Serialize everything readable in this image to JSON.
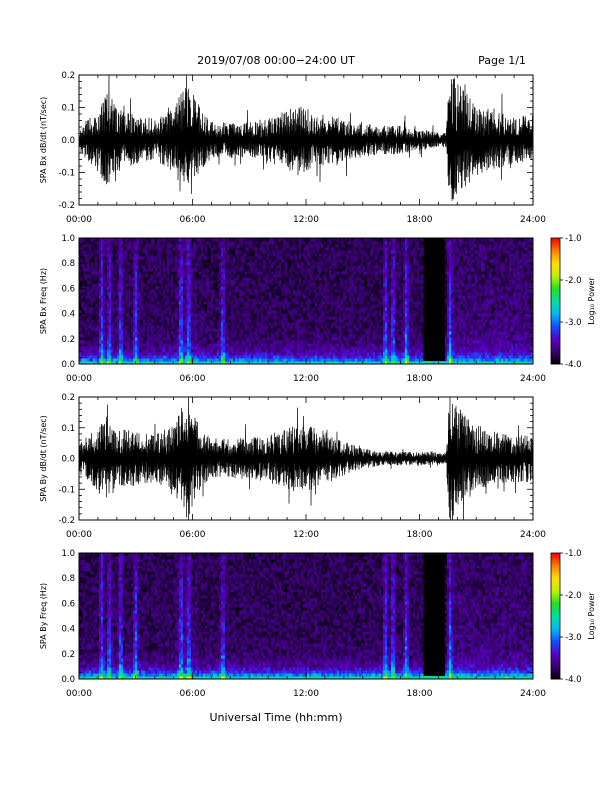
{
  "header": {
    "title": "2019/07/08  00:00−24:00 UT",
    "page": "Page 1/1"
  },
  "footer": {
    "xlabel": "Universal Time (hh:mm)"
  },
  "colors": {
    "trace": "#000000",
    "background": "#ffffff",
    "colormap": [
      "#000000",
      "#3a0070",
      "#5a00c8",
      "#1050ff",
      "#00b8ff",
      "#00e0a0",
      "#20e020",
      "#c0f000",
      "#ffe000",
      "#ff8000",
      "#ff0000"
    ]
  },
  "chart_data": [
    {
      "type": "line",
      "ylabel": "SPA Bx dB/dt (nT/sec)",
      "xlim": [
        "00:00",
        "24:00"
      ],
      "ylim": [
        -0.2,
        0.2
      ],
      "x_ticks": [
        "00:00",
        "06:00",
        "12:00",
        "18:00",
        "24:00"
      ],
      "y_ticks": [
        "-0.2",
        "-0.1",
        "0.0",
        "0.1",
        "0.2"
      ],
      "grid": false,
      "envelope": {
        "x_hours": [
          0,
          1,
          1.5,
          2,
          3,
          4,
          5,
          5.5,
          5.8,
          6,
          6.5,
          7,
          8,
          9,
          10,
          11,
          11.5,
          12,
          13,
          14,
          15,
          16,
          17,
          18,
          19,
          19.4,
          19.6,
          20,
          21,
          22,
          23,
          24
        ],
        "amplitude": [
          0.03,
          0.09,
          0.14,
          0.09,
          0.07,
          0.06,
          0.09,
          0.16,
          0.2,
          0.14,
          0.08,
          0.05,
          0.05,
          0.05,
          0.06,
          0.08,
          0.1,
          0.09,
          0.07,
          0.06,
          0.05,
          0.04,
          0.04,
          0.03,
          0.02,
          0.02,
          0.2,
          0.16,
          0.1,
          0.08,
          0.07,
          0.07
        ]
      }
    },
    {
      "type": "heatmap",
      "ylabel": "SPA Bx Freq (Hz)",
      "xlim": [
        "00:00",
        "24:00"
      ],
      "ylim": [
        0.0,
        1.0
      ],
      "x_ticks": [
        "00:00",
        "06:00",
        "12:00",
        "18:00",
        "24:00"
      ],
      "y_ticks": [
        "0.0",
        "0.2",
        "0.4",
        "0.6",
        "0.8",
        "1.0"
      ],
      "colorbar": {
        "label": "Log₁₀ Power",
        "range": [
          -4.0,
          -1.0
        ],
        "ticks": [
          "-1.0",
          "-2.0",
          "-3.0",
          "-4.0"
        ]
      },
      "bright_columns_hours": [
        1.2,
        1.6,
        2.2,
        3.0,
        5.4,
        5.8,
        7.6,
        16.2,
        16.6,
        17.3,
        19.6
      ],
      "dark_gap_hours": [
        18.2,
        19.4
      ],
      "low_freq_power_scale": 0.9
    },
    {
      "type": "line",
      "ylabel": "SPA By dB/dt (nT/sec)",
      "xlim": [
        "00:00",
        "24:00"
      ],
      "ylim": [
        -0.2,
        0.2
      ],
      "x_ticks": [
        "00:00",
        "06:00",
        "12:00",
        "18:00",
        "24:00"
      ],
      "y_ticks": [
        "-0.2",
        "-0.1",
        "0.0",
        "0.1",
        "0.2"
      ],
      "grid": false,
      "envelope": {
        "x_hours": [
          0,
          1,
          1.5,
          2,
          3,
          4,
          5,
          5.5,
          5.8,
          6,
          6.5,
          7,
          8,
          9,
          10,
          11,
          11.5,
          12,
          13,
          14,
          15,
          16,
          17,
          18,
          19,
          19.4,
          19.6,
          20,
          21,
          22,
          23,
          24
        ],
        "amplitude": [
          0.04,
          0.1,
          0.13,
          0.09,
          0.08,
          0.07,
          0.1,
          0.17,
          0.2,
          0.14,
          0.08,
          0.06,
          0.06,
          0.06,
          0.07,
          0.09,
          0.11,
          0.1,
          0.08,
          0.05,
          0.03,
          0.02,
          0.02,
          0.02,
          0.02,
          0.02,
          0.2,
          0.15,
          0.1,
          0.08,
          0.07,
          0.07
        ]
      }
    },
    {
      "type": "heatmap",
      "ylabel": "SPA By Freq (Hz)",
      "xlim": [
        "00:00",
        "24:00"
      ],
      "ylim": [
        0.0,
        1.0
      ],
      "x_ticks": [
        "00:00",
        "06:00",
        "12:00",
        "18:00",
        "24:00"
      ],
      "y_ticks": [
        "0.0",
        "0.2",
        "0.4",
        "0.6",
        "0.8",
        "1.0"
      ],
      "colorbar": {
        "label": "Log₁₀ Power",
        "range": [
          -4.0,
          -1.0
        ],
        "ticks": [
          "-1.0",
          "-2.0",
          "-3.0",
          "-4.0"
        ]
      },
      "bright_columns_hours": [
        1.2,
        1.6,
        2.2,
        3.0,
        5.4,
        5.8,
        7.6,
        16.2,
        16.6,
        17.3,
        19.6
      ],
      "dark_gap_hours": [
        18.2,
        19.4
      ],
      "low_freq_power_scale": 1.0
    }
  ]
}
